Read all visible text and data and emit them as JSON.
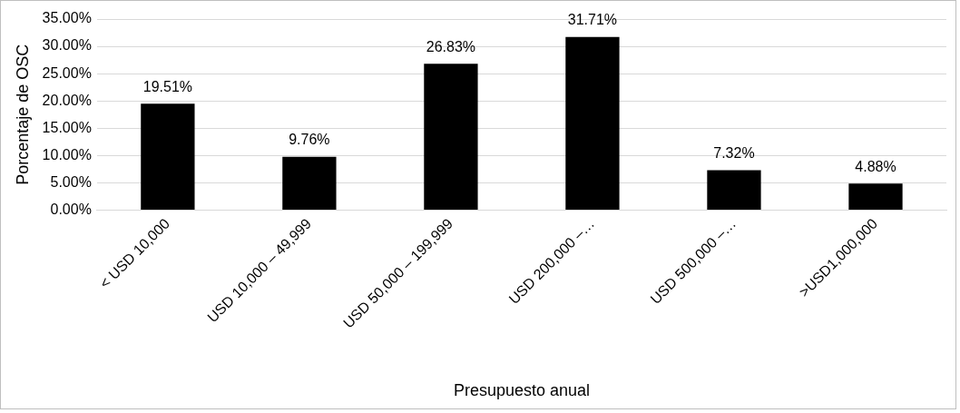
{
  "chart_data": {
    "type": "bar",
    "xlabel": "Presupuesto anual",
    "ylabel": "Porcentaje de OSC",
    "categories": [
      "< USD 10,000",
      "USD 10,000 – 49,999",
      "USD 50,000 – 199,999",
      "USD 200,000 –…",
      "USD 500,000 –…",
      ">USD1,000,000"
    ],
    "values": [
      19.51,
      9.76,
      26.83,
      31.71,
      7.32,
      4.88
    ],
    "value_labels": [
      "19.51%",
      "9.76%",
      "26.83%",
      "31.71%",
      "7.32%",
      "4.88%"
    ],
    "color": "#000000",
    "ylim": [
      0,
      35
    ],
    "yticks": [
      {
        "value": 0,
        "label": "0.00%"
      },
      {
        "value": 5,
        "label": "5.00%"
      },
      {
        "value": 10,
        "label": "10.00%"
      },
      {
        "value": 15,
        "label": "15.00%"
      },
      {
        "value": 20,
        "label": "20.00%"
      },
      {
        "value": 25,
        "label": "25.00%"
      },
      {
        "value": 30,
        "label": "30.00%"
      },
      {
        "value": 35,
        "label": "35.00%"
      }
    ],
    "grid": "y",
    "legend": false
  }
}
